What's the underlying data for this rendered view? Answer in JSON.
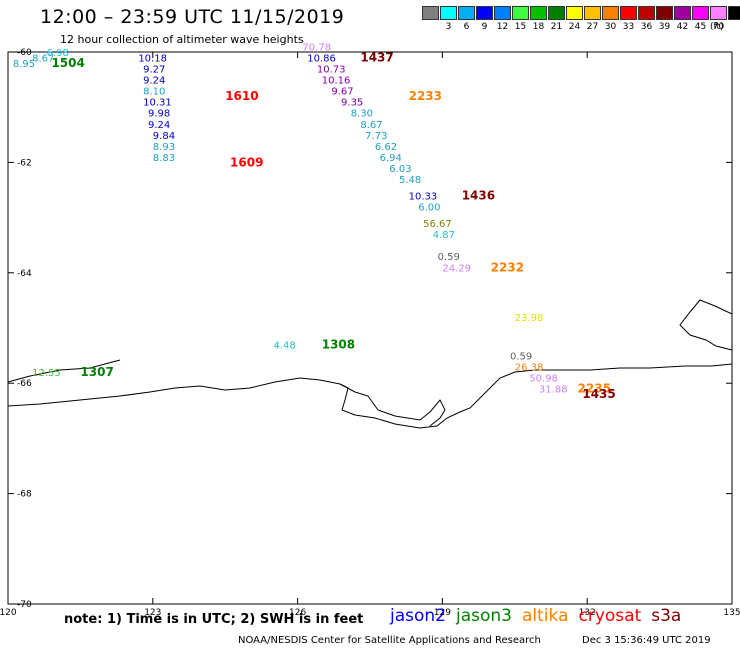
{
  "header": {
    "title": "12:00 – 23:59 UTC 11/15/2019",
    "subtitle": "12 hour collection of altimeter wave heights"
  },
  "scale": {
    "colors": [
      "#808080",
      "#00ffff",
      "#00b0f0",
      "#0000ff",
      "#0080ff",
      "#40ff40",
      "#00c000",
      "#008000",
      "#ffff00",
      "#ffc000",
      "#ff8000",
      "#ff0000",
      "#c00000",
      "#800000",
      "#a000a0",
      "#ff00ff",
      "#ff80ff",
      "#000000"
    ],
    "labels": [
      "",
      "3",
      "6",
      "9",
      "12",
      "15",
      "18",
      "21",
      "24",
      "27",
      "30",
      "33",
      "36",
      "39",
      "42",
      "45",
      "70"
    ],
    "unit": "(ft)"
  },
  "axes": {
    "lon_ticks": [
      {
        "value": 120,
        "label": "120"
      },
      {
        "value": 123,
        "label": "123"
      },
      {
        "value": 126,
        "label": "126"
      },
      {
        "value": 129,
        "label": "129"
      },
      {
        "value": 132,
        "label": "132"
      },
      {
        "value": 135,
        "label": "135"
      }
    ],
    "lat_ticks": [
      {
        "value": -60,
        "label": "-60"
      },
      {
        "value": -62,
        "label": "-62"
      },
      {
        "value": -64,
        "label": "-64"
      },
      {
        "value": -66,
        "label": "-66"
      },
      {
        "value": -68,
        "label": "-68"
      },
      {
        "value": -70,
        "label": "-70"
      }
    ],
    "lon_range": [
      120,
      135
    ],
    "lat_range": [
      -60,
      -70
    ]
  },
  "observations": [
    {
      "lon": 120.1,
      "lat": -60.2,
      "text": "8.95",
      "color": "#20a0c0"
    },
    {
      "lon": 120.5,
      "lat": -60.1,
      "text": "8.67",
      "color": "#20a0c0"
    },
    {
      "lon": 120.8,
      "lat": -60.0,
      "text": "6.98",
      "color": "#20c0e0"
    },
    {
      "lon": 120.9,
      "lat": -60.2,
      "text": "1504",
      "color": "#008000",
      "big": true
    },
    {
      "lon": 122.7,
      "lat": -60.1,
      "text": "10.18",
      "color": "#0000c0"
    },
    {
      "lon": 122.8,
      "lat": -60.3,
      "text": "9.27",
      "color": "#0000c0"
    },
    {
      "lon": 122.8,
      "lat": -60.5,
      "text": "9.24",
      "color": "#0000c0"
    },
    {
      "lon": 122.8,
      "lat": -60.7,
      "text": "8.10",
      "color": "#20a0c0"
    },
    {
      "lon": 122.8,
      "lat": -60.9,
      "text": "10.31",
      "color": "#0000c0"
    },
    {
      "lon": 122.9,
      "lat": -61.1,
      "text": "9.98",
      "color": "#0000c0"
    },
    {
      "lon": 122.9,
      "lat": -61.3,
      "text": "9.24",
      "color": "#0000c0"
    },
    {
      "lon": 123.0,
      "lat": -61.5,
      "text": "9.84",
      "color": "#0000c0"
    },
    {
      "lon": 123.0,
      "lat": -61.7,
      "text": "8.93",
      "color": "#20a0c0"
    },
    {
      "lon": 123.0,
      "lat": -61.9,
      "text": "8.83",
      "color": "#20a0c0"
    },
    {
      "lon": 124.5,
      "lat": -60.8,
      "text": "1610",
      "color": "#ff0000",
      "big": true
    },
    {
      "lon": 124.6,
      "lat": -62.0,
      "text": "1609",
      "color": "#ff0000",
      "big": true
    },
    {
      "lon": 126.1,
      "lat": -59.9,
      "text": "70.78",
      "color": "#d080f0"
    },
    {
      "lon": 126.2,
      "lat": -60.1,
      "text": "10.86",
      "color": "#0000c0"
    },
    {
      "lon": 126.4,
      "lat": -60.3,
      "text": "10.73",
      "color": "#8000a0"
    },
    {
      "lon": 126.5,
      "lat": -60.5,
      "text": "10.16",
      "color": "#8000a0"
    },
    {
      "lon": 126.7,
      "lat": -60.7,
      "text": "9.67",
      "color": "#8000a0"
    },
    {
      "lon": 126.9,
      "lat": -60.9,
      "text": "9.35",
      "color": "#8000a0"
    },
    {
      "lon": 127.1,
      "lat": -61.1,
      "text": "8.30",
      "color": "#20a0c0"
    },
    {
      "lon": 127.3,
      "lat": -61.3,
      "text": "8.67",
      "color": "#20a0c0"
    },
    {
      "lon": 127.4,
      "lat": -61.5,
      "text": "7.73",
      "color": "#20a0c0"
    },
    {
      "lon": 127.6,
      "lat": -61.7,
      "text": "6.62",
      "color": "#20a0c0"
    },
    {
      "lon": 127.7,
      "lat": -61.9,
      "text": "6.94",
      "color": "#20a0c0"
    },
    {
      "lon": 127.9,
      "lat": -62.1,
      "text": "6.03",
      "color": "#20a0c0"
    },
    {
      "lon": 128.1,
      "lat": -62.3,
      "text": "5.48",
      "color": "#20a0c0"
    },
    {
      "lon": 128.3,
      "lat": -62.6,
      "text": "10.33",
      "color": "#0000c0"
    },
    {
      "lon": 128.5,
      "lat": -62.8,
      "text": "6.00",
      "color": "#20a0c0"
    },
    {
      "lon": 128.6,
      "lat": -63.1,
      "text": "56.67",
      "color": "#808000"
    },
    {
      "lon": 128.8,
      "lat": -63.3,
      "text": "4.87",
      "color": "#20c0c0"
    },
    {
      "lon": 127.3,
      "lat": -60.1,
      "text": "1437",
      "color": "#800000",
      "big": true
    },
    {
      "lon": 128.3,
      "lat": -60.8,
      "text": "2233",
      "color": "#ff8000",
      "big": true
    },
    {
      "lon": 129.4,
      "lat": -62.6,
      "text": "1436",
      "color": "#800000",
      "big": true
    },
    {
      "lon": 128.9,
      "lat": -63.7,
      "text": "0.59",
      "color": "#606060"
    },
    {
      "lon": 129.0,
      "lat": -63.9,
      "text": "24.29",
      "color": "#d080f0"
    },
    {
      "lon": 130.0,
      "lat": -63.9,
      "text": "2232",
      "color": "#ff8000",
      "big": true
    },
    {
      "lon": 130.5,
      "lat": -64.8,
      "text": "23.98",
      "color": "#e0e000"
    },
    {
      "lon": 130.4,
      "lat": -65.5,
      "text": "0.59",
      "color": "#606060"
    },
    {
      "lon": 130.5,
      "lat": -65.7,
      "text": "26.38",
      "color": "#ff8000"
    },
    {
      "lon": 130.8,
      "lat": -65.9,
      "text": "50.98",
      "color": "#d080f0"
    },
    {
      "lon": 131.0,
      "lat": -66.1,
      "text": "31.88",
      "color": "#d080f0"
    },
    {
      "lon": 131.8,
      "lat": -66.1,
      "text": "2235",
      "color": "#ff8000",
      "big": true
    },
    {
      "lon": 131.9,
      "lat": -66.2,
      "text": "1435",
      "color": "#800000",
      "big": true
    },
    {
      "lon": 125.5,
      "lat": -65.3,
      "text": "4.48",
      "color": "#20c0c0"
    },
    {
      "lon": 126.5,
      "lat": -65.3,
      "text": "1308",
      "color": "#008000",
      "big": true
    },
    {
      "lon": 120.5,
      "lat": -65.8,
      "text": "12.55",
      "color": "#40c040"
    },
    {
      "lon": 121.5,
      "lat": -65.8,
      "text": "1307",
      "color": "#008000",
      "big": true
    }
  ],
  "footer": {
    "note": "note: 1) Time is in UTC; 2) SWH is in feet",
    "satellites": [
      {
        "name": "jason2",
        "color": "#0000ff"
      },
      {
        "name": "jason3",
        "color": "#008000"
      },
      {
        "name": "altika",
        "color": "#ff8000"
      },
      {
        "name": "cryosat",
        "color": "#ff0000"
      },
      {
        "name": "s3a",
        "color": "#800000"
      }
    ],
    "credit": "NOAA/NESDIS Center for Satellite Applications and Research",
    "generated": "Dec  3 15:36:49 UTC 2019"
  }
}
